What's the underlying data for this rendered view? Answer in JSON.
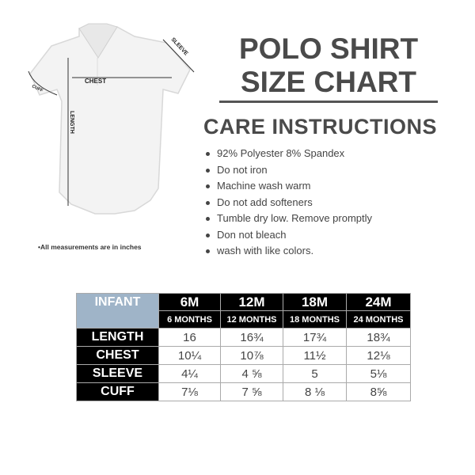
{
  "diagram": {
    "labels": {
      "chest": "CHEST",
      "sleeve": "SLEEVE",
      "cuff": "CUFF",
      "length": "LENGTH"
    },
    "note": "•All measurements are in inches"
  },
  "title": {
    "line1": "POLO SHIRT",
    "line2": "SIZE CHART"
  },
  "care": {
    "heading": "CARE INSTRUCTIONS",
    "items": [
      "92% Polyester 8% Spandex",
      "Do not iron",
      "Machine wash warm",
      "Do not add softeners",
      "Tumble dry low. Remove promptly",
      "Don not bleach",
      "wash with like colors."
    ]
  },
  "table": {
    "corner": "INFANT",
    "sizes": [
      "6M",
      "12M",
      "18M",
      "24M"
    ],
    "months": [
      "6 MONTHS",
      "12 MONTHS",
      "18 MONTHS",
      "24 MONTHS"
    ],
    "rows": [
      {
        "label": "LENGTH",
        "values": [
          "16",
          "16¾",
          "17¾",
          "18¾"
        ]
      },
      {
        "label": "CHEST",
        "values": [
          "10¼",
          "10⅞",
          "11½",
          "12⅛"
        ]
      },
      {
        "label": "SLEEVE",
        "values": [
          "4¼",
          "4 ⅝",
          "5",
          "5⅛"
        ]
      },
      {
        "label": "CUFF",
        "values": [
          "7⅛",
          "7 ⅝",
          "8 ⅛",
          "8⅝"
        ]
      }
    ]
  },
  "colors": {
    "infant_header": "#9fb4c8",
    "header": "#000000"
  }
}
